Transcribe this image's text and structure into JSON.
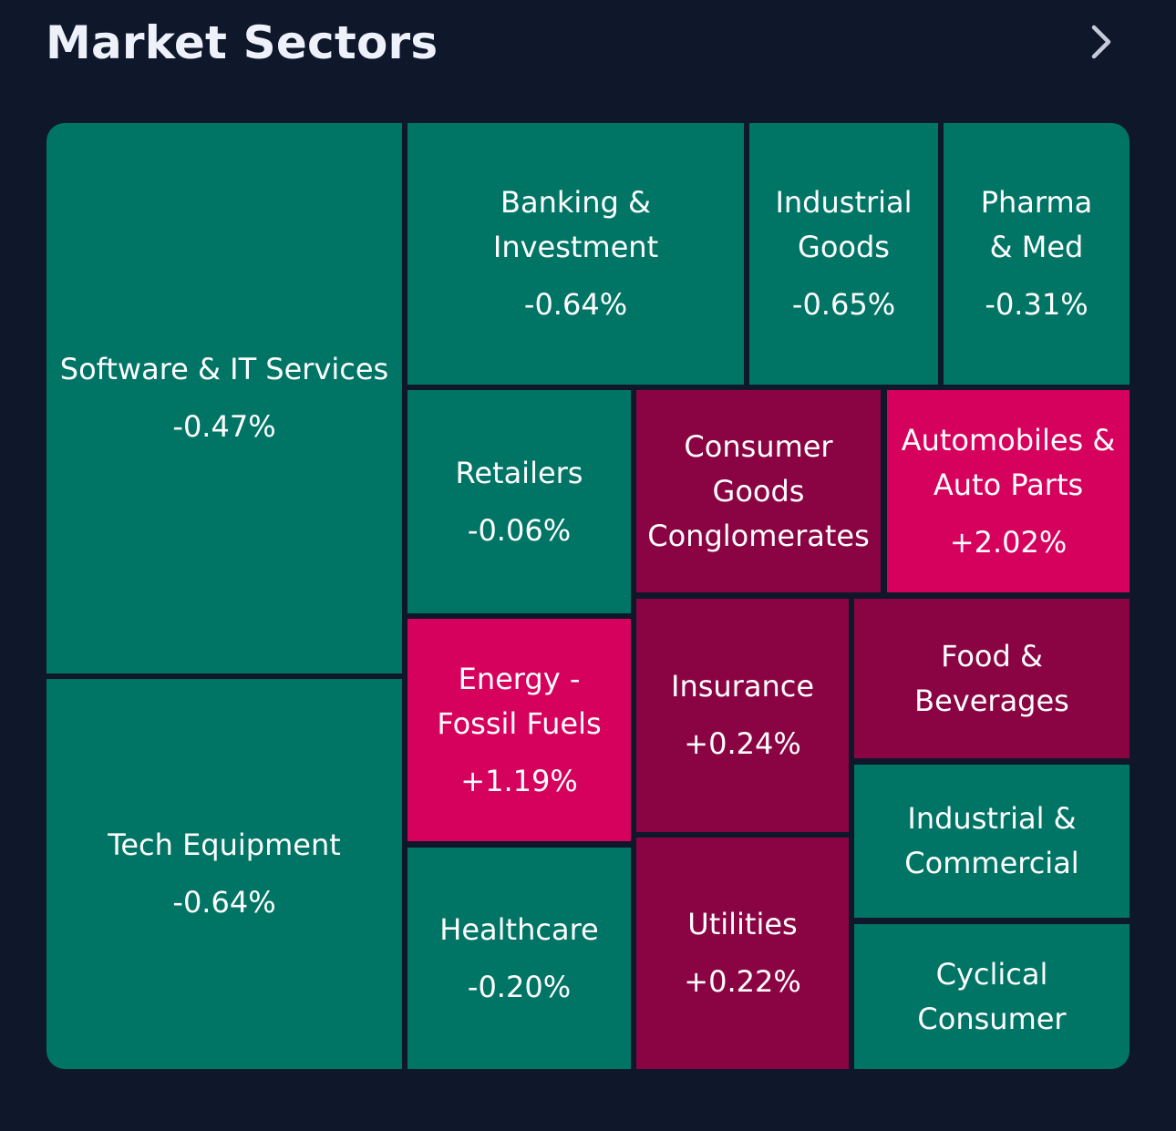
{
  "header": {
    "title": "Market Sectors",
    "chevron_icon": "chevron-right-icon"
  },
  "colors": {
    "background": "#0f172b",
    "negative": "#007566",
    "positive_light": "#8a0443",
    "positive_strong": "#d6005d",
    "text": "#ffffff"
  },
  "sectors": [
    {
      "name": "Software & IT Services",
      "change": "-0.47%"
    },
    {
      "name": "Tech Equipment",
      "change": "-0.64%"
    },
    {
      "name": "Banking &\nInvestment",
      "change": "-0.64%"
    },
    {
      "name": "Industrial\nGoods",
      "change": "-0.65%"
    },
    {
      "name": "Pharma\n& Med",
      "change": "-0.31%"
    },
    {
      "name": "Retailers",
      "change": "-0.06%"
    },
    {
      "name": "Consumer\nGoods\nConglomerates",
      "change": ""
    },
    {
      "name": "Automobiles &\nAuto Parts",
      "change": "+2.02%"
    },
    {
      "name": "Energy -\nFossil Fuels",
      "change": "+1.19%"
    },
    {
      "name": "Insurance",
      "change": "+0.24%"
    },
    {
      "name": "Food &\nBeverages",
      "change": ""
    },
    {
      "name": "Industrial &\nCommercial",
      "change": ""
    },
    {
      "name": "Healthcare",
      "change": "-0.20%"
    },
    {
      "name": "Utilities",
      "change": "+0.22%"
    },
    {
      "name": "Cyclical\nConsumer",
      "change": ""
    }
  ]
}
